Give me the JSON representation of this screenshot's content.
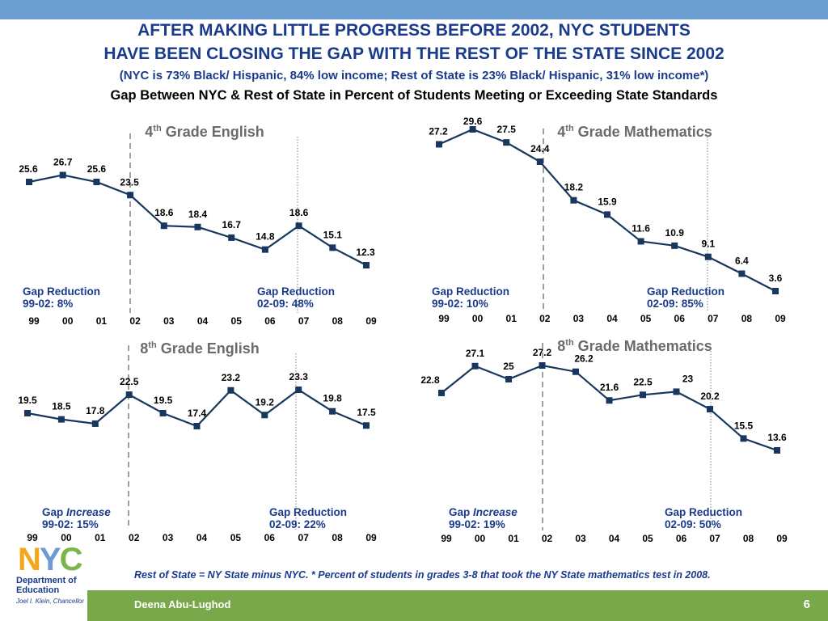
{
  "header": {
    "title_line1": "AFTER MAKING LITTLE PROGRESS BEFORE 2002, NYC STUDENTS",
    "title_line2": "HAVE BEEN CLOSING THE GAP WITH THE REST OF THE STATE SINCE 2002",
    "subtitle": "(NYC is 73% Black/ Hispanic, 84% low income; Rest of State is 23% Black/ Hispanic, 31% low income*)",
    "chart_heading": "Gap Between NYC & Rest of State in Percent of Students Meeting or Exceeding State Standards"
  },
  "chart_data": [
    {
      "type": "line",
      "title": "4th Grade English",
      "title_parts": {
        "pre": "4",
        "sup": "th",
        "post": " Grade English"
      },
      "categories": [
        "99",
        "00",
        "01",
        "02",
        "03",
        "04",
        "05",
        "06",
        "07",
        "08",
        "09"
      ],
      "values": [
        25.6,
        26.7,
        25.6,
        23.5,
        18.6,
        18.4,
        16.7,
        14.8,
        18.6,
        15.1,
        12.3
      ],
      "notes": [
        {
          "line1": "Gap Reduction",
          "line2": "99-02: 8%"
        },
        {
          "line1": "Gap Reduction",
          "line2": "02-09: 48%"
        }
      ]
    },
    {
      "type": "line",
      "title": "4th Grade Mathematics",
      "title_parts": {
        "pre": "4",
        "sup": "th",
        "post": " Grade Mathematics"
      },
      "categories": [
        "99",
        "00",
        "01",
        "02",
        "03",
        "04",
        "05",
        "06",
        "07",
        "08",
        "09"
      ],
      "values": [
        27.2,
        29.6,
        27.5,
        24.4,
        18.2,
        15.9,
        11.6,
        10.9,
        9.1,
        6.4,
        3.6
      ],
      "notes": [
        {
          "line1": "Gap Reduction",
          "line2": "99-02: 10%"
        },
        {
          "line1": "Gap Reduction",
          "line2": "02-09: 85%"
        }
      ]
    },
    {
      "type": "line",
      "title": "8th Grade English",
      "title_parts": {
        "pre": "8",
        "sup": "th",
        "post": " Grade English"
      },
      "categories": [
        "99",
        "00",
        "01",
        "02",
        "03",
        "04",
        "05",
        "06",
        "07",
        "08",
        "09"
      ],
      "values": [
        19.5,
        18.5,
        17.8,
        22.5,
        19.5,
        17.4,
        23.2,
        19.2,
        23.3,
        19.8,
        17.5
      ],
      "notes": [
        {
          "line1_pre": "Gap ",
          "line1_em": "Increase",
          "line2": "99-02: 15%"
        },
        {
          "line1": "Gap Reduction",
          "line2": "02-09: 22%"
        }
      ]
    },
    {
      "type": "line",
      "title": "8th Grade Mathematics",
      "title_parts": {
        "pre": "8",
        "sup": "th",
        "post": " Grade Mathematics"
      },
      "categories": [
        "99",
        "00",
        "01",
        "02",
        "03",
        "04",
        "05",
        "06",
        "07",
        "08",
        "09"
      ],
      "values": [
        22.8,
        27.1,
        25,
        27.2,
        26.2,
        21.6,
        22.5,
        23,
        20.2,
        15.5,
        13.6
      ],
      "notes": [
        {
          "line1_pre": "Gap ",
          "line1_em": "Increase",
          "line2": "99-02: 19%"
        },
        {
          "line1": "Gap Reduction",
          "line2": "02-09: 50%"
        }
      ]
    }
  ],
  "footnote": "Rest of State = NY State minus NYC. * Percent of students in grades 3-8 that took the NY State mathematics test in 2008.",
  "footer": {
    "author": "Deena Abu-Lughod",
    "page_number": "6"
  },
  "logo": {
    "nyc": "NYC",
    "department_line1": "Department of",
    "department_line2": "Education",
    "chancellor": "Joel I. Klein, Chancellor"
  },
  "colors": {
    "series": "#17375e",
    "accent_text": "#1a3a8c",
    "top_bar": "#6d9ed2",
    "footer_bar": "#78a84a"
  }
}
